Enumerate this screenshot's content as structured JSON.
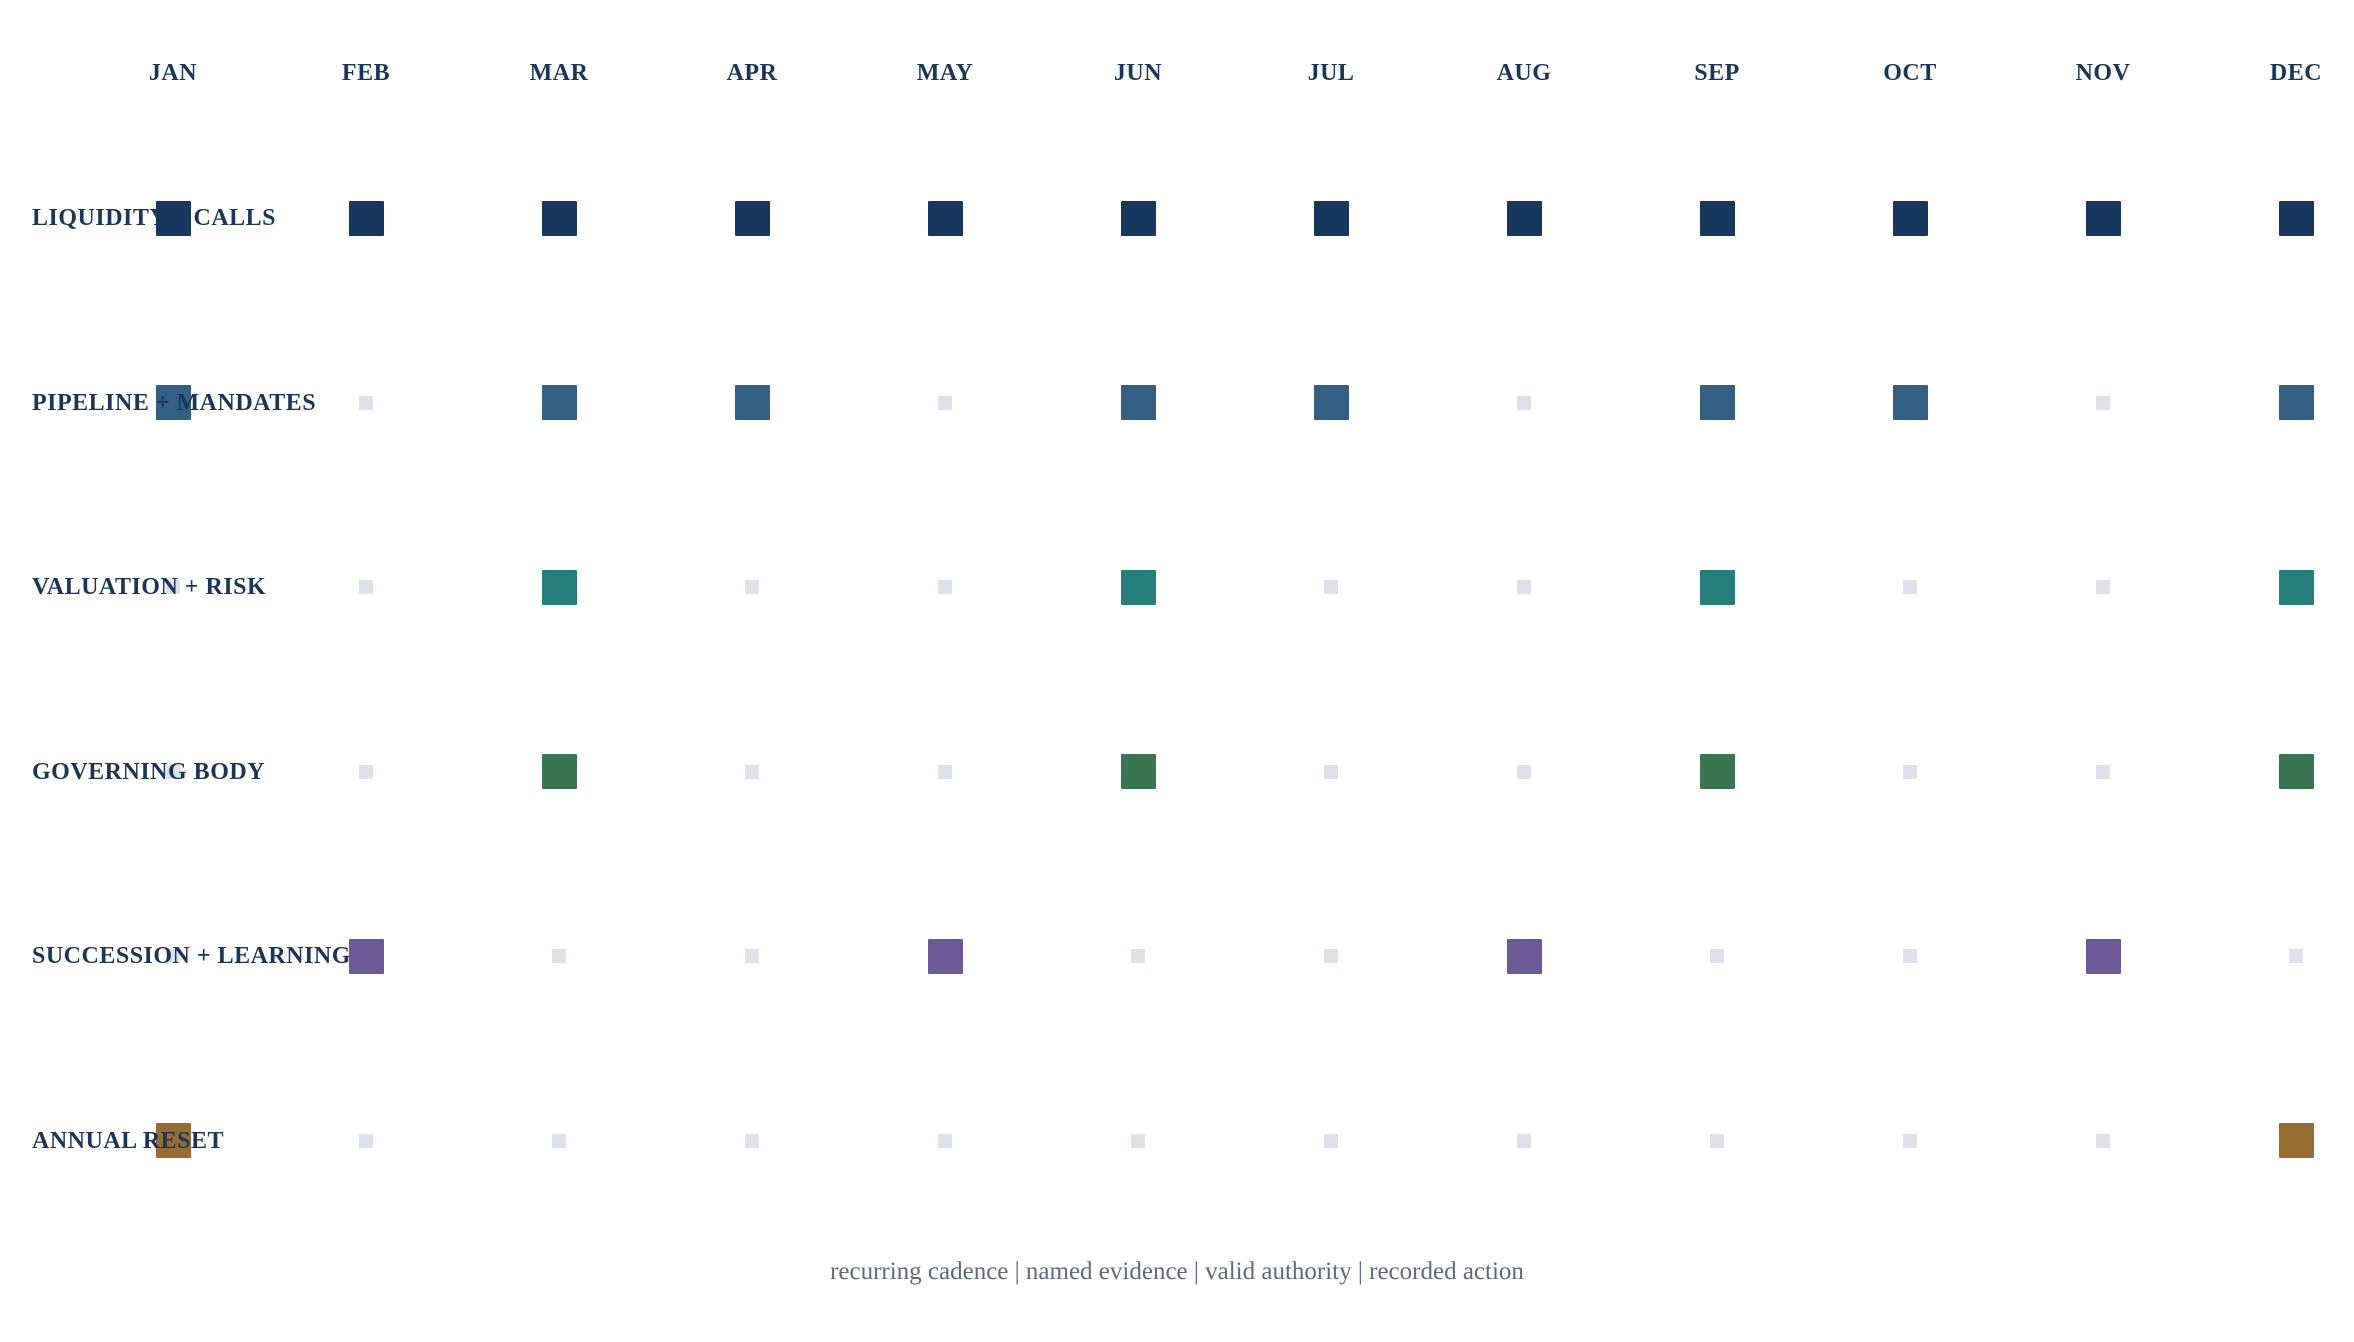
{
  "months": [
    "JAN",
    "FEB",
    "MAR",
    "APR",
    "MAY",
    "JUN",
    "JUL",
    "AUG",
    "SEP",
    "OCT",
    "NOV",
    "DEC"
  ],
  "rows": [
    {
      "label": "LIQUIDITY + CALLS",
      "color": "#17375e",
      "active": [
        1,
        1,
        1,
        1,
        1,
        1,
        1,
        1,
        1,
        1,
        1,
        1
      ]
    },
    {
      "label": "PIPELINE + MANDATES",
      "color": "#325f82",
      "active": [
        1,
        0,
        1,
        1,
        0,
        1,
        1,
        0,
        1,
        1,
        0,
        1
      ]
    },
    {
      "label": "VALUATION + RISK",
      "color": "#267f7a",
      "active": [
        0,
        0,
        1,
        0,
        0,
        1,
        0,
        0,
        1,
        0,
        0,
        1
      ]
    },
    {
      "label": "GOVERNING BODY",
      "color": "#3a7552",
      "active": [
        0,
        0,
        1,
        0,
        0,
        1,
        0,
        0,
        1,
        0,
        0,
        1
      ]
    },
    {
      "label": "SUCCESSION + LEARNING",
      "color": "#6c5a98",
      "active": [
        0,
        1,
        0,
        0,
        1,
        0,
        0,
        1,
        0,
        0,
        1,
        0
      ]
    },
    {
      "label": "ANNUAL RESET",
      "color": "#976c32",
      "active": [
        1,
        0,
        0,
        0,
        0,
        0,
        0,
        0,
        0,
        0,
        0,
        1
      ]
    }
  ],
  "inactive_color": "#dde2ea",
  "footer": "recurring cadence | named evidence | valid authority | recorded action"
}
